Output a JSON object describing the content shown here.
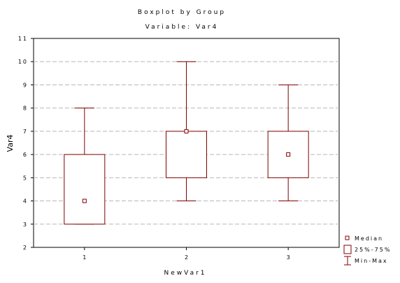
{
  "chart_data": {
    "type": "boxplot",
    "title": "Boxplot by Group",
    "subtitle": "Variable: Var4",
    "xlabel": "NewVar1",
    "ylabel": "Var4",
    "ylim": [
      2,
      11
    ],
    "yticks": [
      "2",
      "3",
      "4",
      "5",
      "6",
      "7",
      "8",
      "9",
      "10",
      "11"
    ],
    "grid": true,
    "legend_position": "bottom-right",
    "colors": {
      "box": "#800000",
      "grid": "#b8b8b8",
      "axis": "#000000"
    },
    "categories": [
      "1",
      "2",
      "3"
    ],
    "groups": [
      {
        "label": "1",
        "min": 3,
        "q1": 3,
        "median": 4,
        "q3": 6,
        "max": 8
      },
      {
        "label": "2",
        "min": 4,
        "q1": 5,
        "median": 7,
        "q3": 7,
        "max": 10
      },
      {
        "label": "3",
        "min": 4,
        "q1": 5,
        "median": 6,
        "q3": 7,
        "max": 9
      }
    ],
    "legend": [
      {
        "marker": "median-square",
        "label": "Median"
      },
      {
        "marker": "box",
        "label": "25%-75%"
      },
      {
        "marker": "whisker",
        "label": "Min-Max"
      }
    ]
  }
}
